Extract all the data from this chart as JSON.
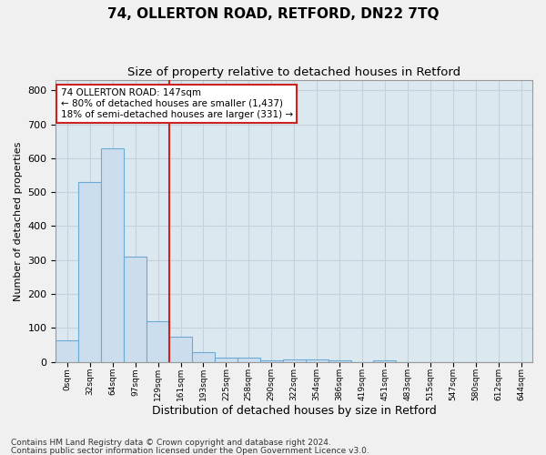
{
  "title": "74, OLLERTON ROAD, RETFORD, DN22 7TQ",
  "subtitle": "Size of property relative to detached houses in Retford",
  "xlabel": "Distribution of detached houses by size in Retford",
  "ylabel": "Number of detached properties",
  "footnote1": "Contains HM Land Registry data © Crown copyright and database right 2024.",
  "footnote2": "Contains public sector information licensed under the Open Government Licence v3.0.",
  "bin_labels": [
    "0sqm",
    "32sqm",
    "64sqm",
    "97sqm",
    "129sqm",
    "161sqm",
    "193sqm",
    "225sqm",
    "258sqm",
    "290sqm",
    "322sqm",
    "354sqm",
    "386sqm",
    "419sqm",
    "451sqm",
    "483sqm",
    "515sqm",
    "547sqm",
    "580sqm",
    "612sqm",
    "644sqm"
  ],
  "bar_values": [
    63,
    530,
    630,
    310,
    120,
    75,
    30,
    13,
    13,
    5,
    8,
    8,
    5,
    0,
    5,
    0,
    0,
    0,
    0,
    0,
    0
  ],
  "bar_color": "#ccdded",
  "bar_edge_color": "#6aaad4",
  "bar_width": 1.0,
  "ylim": [
    0,
    830
  ],
  "yticks": [
    0,
    100,
    200,
    300,
    400,
    500,
    600,
    700,
    800
  ],
  "annotation_text": "74 OLLERTON ROAD: 147sqm\n← 80% of detached houses are smaller (1,437)\n18% of semi-detached houses are larger (331) →",
  "vline_color": "#cc2222",
  "annotation_box_color": "#ffffff",
  "annotation_box_edge": "#cc2222",
  "grid_color": "#c8d0dc",
  "bg_color": "#dce8f0",
  "title_fontsize": 11,
  "subtitle_fontsize": 9.5,
  "ylabel_fontsize": 8,
  "xlabel_fontsize": 9,
  "footnote_fontsize": 6.5
}
